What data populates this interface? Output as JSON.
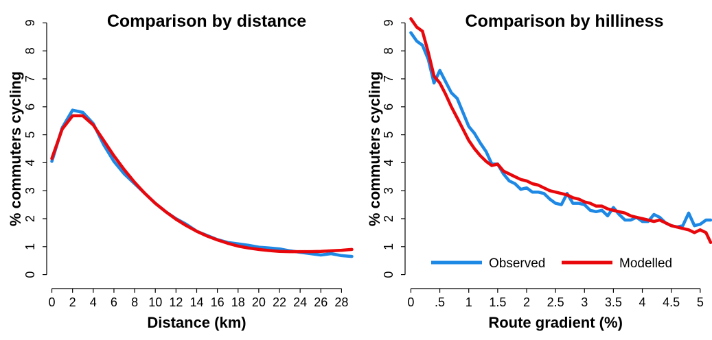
{
  "chart_data": [
    {
      "type": "line",
      "title": "Comparison by distance",
      "xlabel": "Distance (km)",
      "ylabel": "% commuters cycling",
      "xlim": [
        -0.5,
        29.3
      ],
      "ylim": [
        -0.5,
        9.5
      ],
      "xticks": [
        0,
        2,
        4,
        6,
        8,
        10,
        12,
        14,
        16,
        18,
        20,
        22,
        24,
        26,
        28
      ],
      "xtick_labels": [
        "0",
        "2",
        "4",
        "6",
        "8",
        "10",
        "12",
        "14",
        "16",
        "18",
        "20",
        "22",
        "24",
        "26",
        "28"
      ],
      "yticks": [
        0,
        1,
        2,
        3,
        4,
        5,
        6,
        7,
        8,
        9
      ],
      "ytick_labels": [
        "0",
        "1",
        "2",
        "3",
        "4",
        "5",
        "6",
        "7",
        "8",
        "9"
      ],
      "x": [
        0,
        1,
        2,
        3,
        4,
        5,
        6,
        7,
        8,
        9,
        10,
        11,
        12,
        13,
        14,
        15,
        16,
        17,
        18,
        19,
        20,
        21,
        22,
        23,
        24,
        25,
        26,
        27,
        28,
        29
      ],
      "series": [
        {
          "color": "#1e88e5",
          "values": [
            4.05,
            5.25,
            5.88,
            5.8,
            5.4,
            4.65,
            4.05,
            3.6,
            3.25,
            2.9,
            2.55,
            2.25,
            2.0,
            1.8,
            1.55,
            1.4,
            1.25,
            1.15,
            1.1,
            1.05,
            0.98,
            0.95,
            0.92,
            0.85,
            0.8,
            0.75,
            0.7,
            0.75,
            0.68,
            0.65
          ]
        },
        {
          "color": "#e8080c",
          "values": [
            4.15,
            5.2,
            5.68,
            5.68,
            5.35,
            4.8,
            4.25,
            3.75,
            3.3,
            2.9,
            2.55,
            2.25,
            1.98,
            1.75,
            1.55,
            1.38,
            1.24,
            1.12,
            1.02,
            0.95,
            0.9,
            0.86,
            0.83,
            0.82,
            0.82,
            0.82,
            0.83,
            0.85,
            0.87,
            0.9
          ]
        }
      ]
    },
    {
      "type": "line",
      "title": "Comparison by hilliness",
      "xlabel": "Route gradient (%)",
      "ylabel": "% commuters cycling",
      "xlim": [
        -0.1,
        5.18
      ],
      "ylim": [
        -0.5,
        9.5
      ],
      "xticks": [
        0,
        0.5,
        1,
        1.5,
        2,
        2.5,
        3,
        3.5,
        4,
        4.5,
        5
      ],
      "xtick_labels": [
        "0",
        ".5",
        "1",
        "1.5",
        "2",
        "2.5",
        "3",
        "3.5",
        "4",
        "4.5",
        "5"
      ],
      "yticks": [
        0,
        1,
        2,
        3,
        4,
        5,
        6,
        7,
        8,
        9
      ],
      "ytick_labels": [
        "0",
        "1",
        "2",
        "3",
        "4",
        "5",
        "6",
        "7",
        "8",
        "9"
      ],
      "legend": {
        "placement": "bottom",
        "entries": [
          "Observed",
          "Modelled"
        ]
      },
      "series": [
        {
          "name": "Observed",
          "color": "#1e88e5",
          "x": [
            0,
            0.1,
            0.2,
            0.3,
            0.4,
            0.5,
            0.6,
            0.7,
            0.8,
            0.9,
            1.0,
            1.1,
            1.2,
            1.3,
            1.4,
            1.5,
            1.6,
            1.7,
            1.8,
            1.9,
            2.0,
            2.1,
            2.2,
            2.3,
            2.4,
            2.5,
            2.6,
            2.7,
            2.8,
            2.9,
            3.0,
            3.1,
            3.2,
            3.3,
            3.4,
            3.5,
            3.6,
            3.7,
            3.8,
            3.9,
            4.0,
            4.1,
            4.2,
            4.3,
            4.4,
            4.5,
            4.6,
            4.7,
            4.8,
            4.9,
            5.0,
            5.1,
            5.18
          ],
          "values": [
            8.65,
            8.35,
            8.2,
            7.7,
            6.85,
            7.3,
            6.9,
            6.5,
            6.3,
            5.8,
            5.3,
            5.05,
            4.7,
            4.4,
            3.95,
            3.95,
            3.6,
            3.35,
            3.25,
            3.05,
            3.1,
            2.95,
            2.95,
            2.9,
            2.7,
            2.55,
            2.5,
            2.9,
            2.55,
            2.55,
            2.5,
            2.3,
            2.25,
            2.3,
            2.1,
            2.4,
            2.15,
            1.95,
            1.95,
            2.05,
            1.9,
            1.9,
            2.15,
            2.05,
            1.85,
            1.75,
            1.7,
            1.75,
            2.2,
            1.75,
            1.8,
            1.95,
            1.95
          ]
        },
        {
          "name": "Modelled",
          "color": "#e8080c",
          "x": [
            0,
            0.1,
            0.2,
            0.3,
            0.4,
            0.5,
            0.6,
            0.7,
            0.8,
            0.9,
            1.0,
            1.1,
            1.2,
            1.3,
            1.4,
            1.5,
            1.6,
            1.7,
            1.8,
            1.9,
            2.0,
            2.1,
            2.2,
            2.3,
            2.4,
            2.5,
            2.6,
            2.7,
            2.8,
            2.9,
            3.0,
            3.1,
            3.2,
            3.3,
            3.4,
            3.5,
            3.6,
            3.7,
            3.8,
            3.9,
            4.0,
            4.1,
            4.2,
            4.3,
            4.4,
            4.5,
            4.6,
            4.7,
            4.8,
            4.9,
            5.0,
            5.1,
            5.18
          ],
          "values": [
            9.15,
            8.85,
            8.7,
            7.95,
            7.1,
            6.85,
            6.45,
            6.0,
            5.6,
            5.2,
            4.8,
            4.5,
            4.25,
            4.05,
            3.9,
            3.95,
            3.7,
            3.6,
            3.5,
            3.4,
            3.35,
            3.25,
            3.2,
            3.1,
            3.0,
            2.95,
            2.9,
            2.85,
            2.75,
            2.7,
            2.6,
            2.55,
            2.45,
            2.45,
            2.35,
            2.3,
            2.25,
            2.2,
            2.1,
            2.05,
            2.0,
            1.95,
            1.9,
            1.95,
            1.85,
            1.75,
            1.7,
            1.65,
            1.6,
            1.5,
            1.6,
            1.5,
            1.15
          ]
        }
      ]
    }
  ]
}
